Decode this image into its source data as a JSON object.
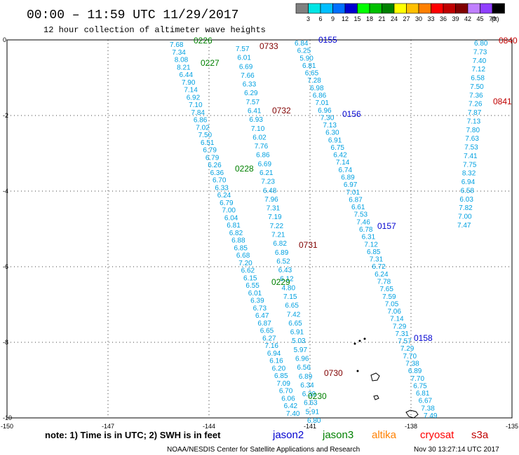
{
  "header": {
    "title": "00:00 – 11:59 UTC 11/29/2017",
    "subtitle": "12 hour collection of altimeter wave heights"
  },
  "colorbar": {
    "colors": [
      "#808080",
      "#00e5e5",
      "#00bfff",
      "#0070ff",
      "#0000d0",
      "#00ff00",
      "#00c000",
      "#008000",
      "#ffff00",
      "#ffc000",
      "#ff8000",
      "#ff0000",
      "#c00000",
      "#800000",
      "#c080ff",
      "#9040ff",
      "#000000"
    ],
    "labels": [
      "3",
      "6",
      "9",
      "12",
      "15",
      "18",
      "21",
      "24",
      "27",
      "30",
      "33",
      "36",
      "39",
      "42",
      "45",
      "70",
      "(ft)"
    ]
  },
  "axes": {
    "y_ticks": [
      "0",
      "-2",
      "-4",
      "-6",
      "-8",
      "-10"
    ],
    "x_ticks": [
      "-150",
      "-147",
      "-144",
      "-141",
      "-138",
      "-135"
    ]
  },
  "tracks": [
    {
      "id": "jason3-left",
      "color": "#00a0e0",
      "values": [
        "7.68",
        "7.34",
        "8.08",
        "8.21",
        "6.44",
        "7.90",
        "7.14",
        "6.92",
        "7.10",
        "7.84",
        "6.86",
        "7.02",
        "7.50",
        "6.51",
        "6.79",
        "6.79",
        "6.26",
        "6.36",
        "6.70",
        "6.33",
        "6.24",
        "6.79",
        "7.00",
        "6.04",
        "6.81",
        "6.82",
        "6.88",
        "6.85",
        "6.68",
        "7.20",
        "6.62",
        "6.15",
        "6.55",
        "6.01",
        "6.39",
        "6.73",
        "6.47",
        "6.87",
        "6.65",
        "6.27",
        "7.16",
        "6.94",
        "6.16",
        "6.20",
        "6.85",
        "7.09",
        "6.70",
        "6.06",
        "6.42",
        "7.40"
      ]
    },
    {
      "id": "jason3-right",
      "color": "#00a0e0",
      "values": [
        "7.57",
        "6.01",
        "6.69",
        "7.66",
        "6.33",
        "6.29",
        "7.57",
        "6.41",
        "6.93",
        "7.10",
        "6.02",
        "7.76",
        "6.86",
        "6.69",
        "6.21",
        "7.23",
        "6.48",
        "7.96",
        "7.31",
        "7.19",
        "7.22",
        "7.21",
        "6.82",
        "6.89",
        "6.52",
        "6.43",
        "6.12",
        "4.80",
        "7.15",
        "6.65",
        "7.42",
        "6.65",
        "6.91",
        "5.03",
        "5.97",
        "6.96",
        "6.56",
        "6.89",
        "6.34",
        "6.39",
        "6.63",
        "5.91",
        "6.80"
      ]
    },
    {
      "id": "jason2-middle",
      "color": "#00a0e0",
      "values": [
        "6.84",
        "6.25",
        "5.90",
        "6.81",
        "6.65",
        "7.28",
        "6.98",
        "6.86",
        "7.01",
        "6.96",
        "7.30",
        "7.13",
        "6.30",
        "6.91",
        "6.75",
        "6.42",
        "7.14",
        "6.74",
        "6.89",
        "6.97",
        "7.01",
        "6.87",
        "6.61",
        "7.53",
        "7.46",
        "6.78",
        "6.31",
        "7.12",
        "6.85",
        "7.31",
        "6.72",
        "6.24",
        "7.78",
        "7.65",
        "7.59",
        "7.05",
        "7.06",
        "7.14",
        "7.29",
        "7.31",
        "7.57",
        "7.29",
        "7.70",
        "7.38",
        "6.89",
        "7.70",
        "6.75",
        "6.81",
        "6.67",
        "7.38",
        "7.49"
      ]
    },
    {
      "id": "cryosat-east",
      "color": "#00a0e0",
      "values": [
        "6.80",
        "7.73",
        "7.40",
        "7.12",
        "6.58",
        "7.50",
        "7.36",
        "7.26",
        "7.87",
        "7.13",
        "7.80",
        "7.63",
        "7.53",
        "7.41",
        "7.75",
        "8.32",
        "6.94",
        "6.58",
        "6.03",
        "7.82",
        "7.00",
        "7.47"
      ]
    }
  ],
  "pass_labels": [
    {
      "text": "0226",
      "color": "#008000"
    },
    {
      "text": "0227",
      "color": "#008000"
    },
    {
      "text": "0228",
      "color": "#008000"
    },
    {
      "text": "0229",
      "color": "#008000"
    },
    {
      "text": "0230",
      "color": "#008000"
    },
    {
      "text": "0733",
      "color": "#800000"
    },
    {
      "text": "0732",
      "color": "#800000"
    },
    {
      "text": "0731",
      "color": "#800000"
    },
    {
      "text": "0730",
      "color": "#800000"
    },
    {
      "text": "0155",
      "color": "#0000d0"
    },
    {
      "text": "0156",
      "color": "#0000d0"
    },
    {
      "text": "0157",
      "color": "#0000d0"
    },
    {
      "text": "0158",
      "color": "#0000d0"
    },
    {
      "text": "0840",
      "color": "#c00000"
    },
    {
      "text": "0841",
      "color": "#c00000"
    }
  ],
  "note": "note: 1) Time is in UTC; 2) SWH is in feet",
  "missions": [
    {
      "name": "jason2",
      "color": "#0000d0"
    },
    {
      "name": "jason3",
      "color": "#008000"
    },
    {
      "name": "altika",
      "color": "#ff8000"
    },
    {
      "name": "cryosat",
      "color": "#ff0000"
    },
    {
      "name": "s3a",
      "color": "#c00000"
    }
  ],
  "footer": {
    "center": "NOAA/NESDIS Center for Satellite Applications and Research",
    "timestamp": "Nov 30 13:27:14 UTC 2017"
  }
}
